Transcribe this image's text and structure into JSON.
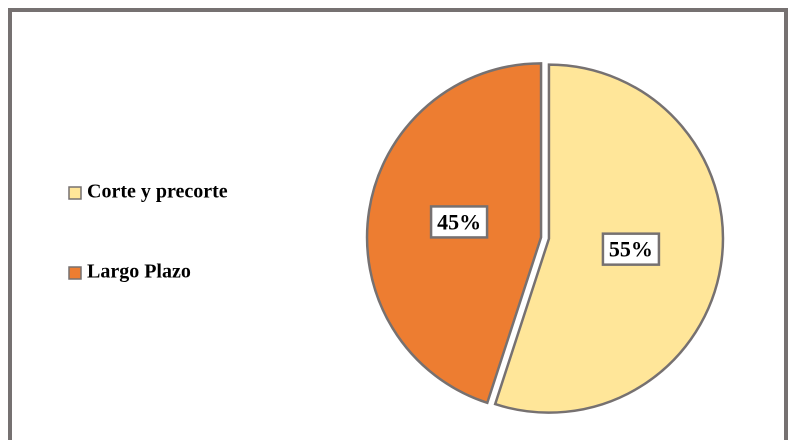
{
  "chart_data": {
    "type": "pie",
    "categories": [
      "Corte y precorte",
      "Largo Plazo"
    ],
    "values": [
      55,
      45
    ],
    "value_labels": [
      "55%",
      "45%"
    ],
    "colors": [
      "#ffe699",
      "#ed7d31"
    ],
    "legend": "left"
  }
}
